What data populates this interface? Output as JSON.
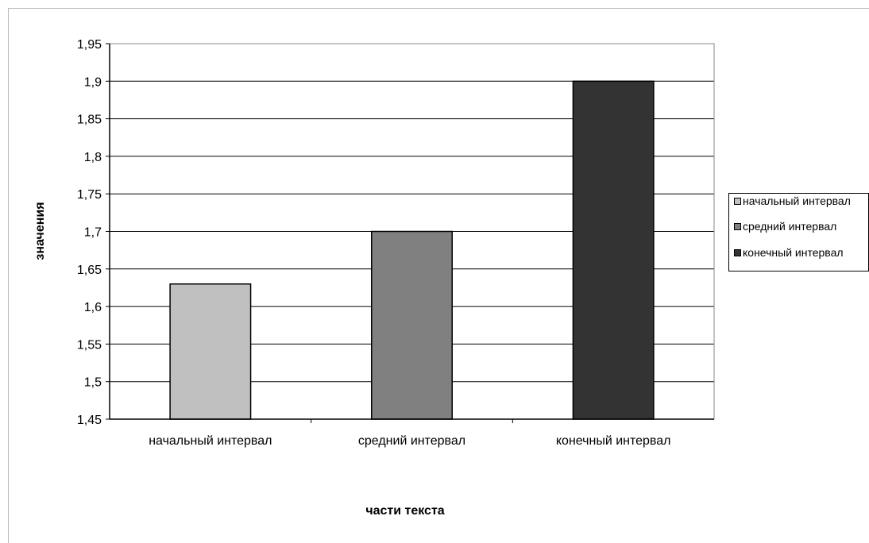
{
  "chart_data": {
    "type": "bar",
    "title": "",
    "xlabel": "части текста",
    "ylabel": "значения",
    "categories": [
      "начальный интервал",
      "средний интервал",
      "конечный интервал"
    ],
    "values": [
      1.63,
      1.7,
      1.9
    ],
    "colors": [
      "#c0c0c0",
      "#808080",
      "#333333"
    ],
    "ylim": [
      1.45,
      1.95
    ],
    "yticks": [
      "1,45",
      "1,5",
      "1,55",
      "1,6",
      "1,65",
      "1,7",
      "1,75",
      "1,8",
      "1,85",
      "1,9",
      "1,95"
    ],
    "grid": true,
    "legend_position": "right",
    "legend": [
      "начальный интервал",
      "средний интервал",
      "конечный интервал"
    ]
  }
}
